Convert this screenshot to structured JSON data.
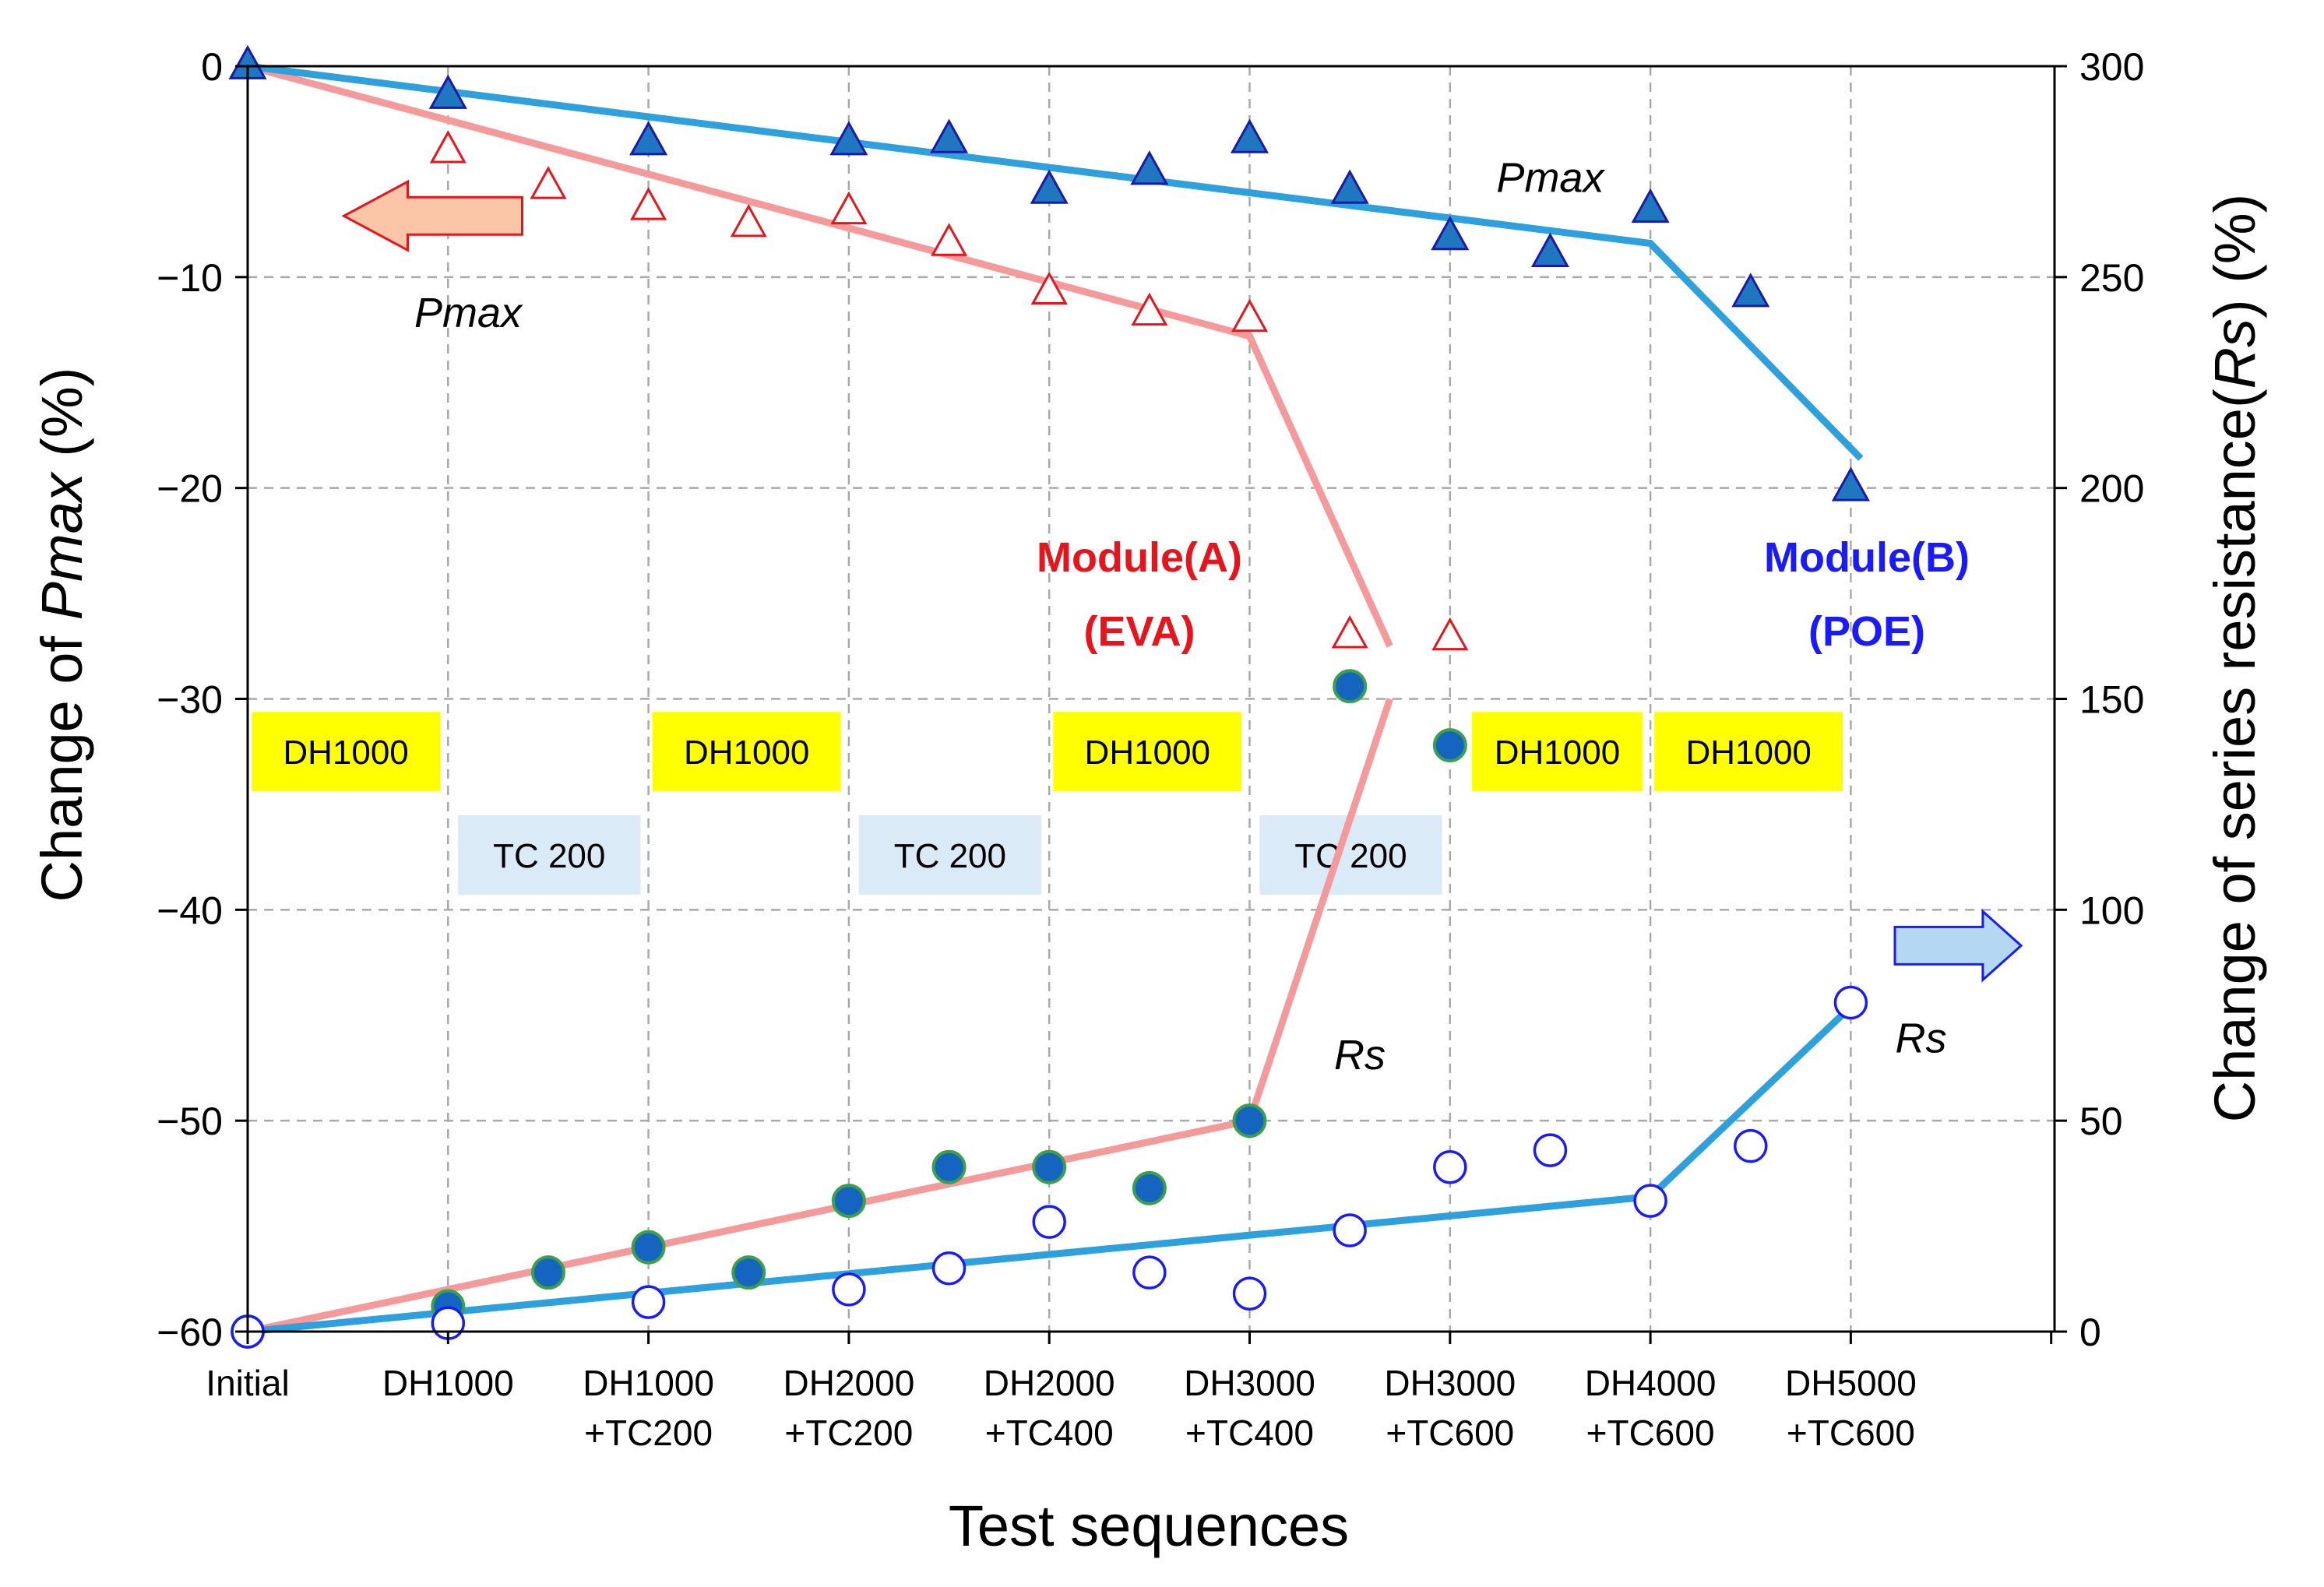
{
  "chart_data": {
    "type": "line",
    "xlabel": "Test sequences",
    "ylabel_left": {
      "prefix": "Change of ",
      "italic": "Pmax",
      "suffix": " (%)"
    },
    "ylabel_right": {
      "prefix": "Change of series resistance(",
      "italic": "Rs",
      "suffix": ") (%)"
    },
    "ylim_left": [
      -60,
      0
    ],
    "ylim_right": [
      0,
      300
    ],
    "xlim": [
      0,
      9
    ],
    "yticks_left": [
      0,
      -10,
      -20,
      -30,
      -40,
      -50,
      -60
    ],
    "ytick_labels_left": [
      "0",
      "−10",
      "−20",
      "−30",
      "−40",
      "−50",
      "−60"
    ],
    "yticks_right": [
      300,
      250,
      200,
      150,
      100,
      50,
      0
    ],
    "ytick_labels_right": [
      "300",
      "250",
      "200",
      "150",
      "100",
      "50",
      "0"
    ],
    "grid": true,
    "categories": [
      {
        "l1": "Initial",
        "l2": ""
      },
      {
        "l1": "DH1000",
        "l2": ""
      },
      {
        "l1": "DH1000",
        "l2": "+TC200"
      },
      {
        "l1": "DH2000",
        "l2": "+TC200"
      },
      {
        "l1": "DH2000",
        "l2": "+TC400"
      },
      {
        "l1": "DH3000",
        "l2": "+TC400"
      },
      {
        "l1": "DH3000",
        "l2": "+TC600"
      },
      {
        "l1": "DH4000",
        "l2": "+TC600"
      },
      {
        "l1": "DH5000",
        "l2": "+TC600"
      }
    ],
    "series": [
      {
        "name": "Module(A) Pmax",
        "axis": "left",
        "marker": "triangle-open",
        "color": "#e8141b",
        "x": [
          0,
          1,
          1.5,
          2,
          2.5,
          3,
          3.5,
          4,
          4.5,
          5,
          5.5,
          6
        ],
        "y": [
          0,
          -4,
          -5.7,
          -6.7,
          -7.5,
          -6.9,
          -8.4,
          -10.7,
          -11.7,
          -12,
          -27,
          -27.1
        ]
      },
      {
        "name": "Module(B) Pmax",
        "axis": "left",
        "marker": "triangle-filled",
        "color": "#1f77c0",
        "x": [
          0,
          1,
          2,
          3,
          3.5,
          4,
          4.5,
          5,
          5.5,
          6,
          6.5,
          7,
          7.5,
          8
        ],
        "y": [
          0,
          -1.4,
          -3.6,
          -3.6,
          -3.5,
          -5.9,
          -5,
          -3.5,
          -5.9,
          -8.1,
          -8.9,
          -6.8,
          -10.8,
          -20
        ]
      },
      {
        "name": "Module(A) Rs",
        "axis": "right",
        "marker": "circle-filled",
        "color": "#1565c0",
        "x": [
          0,
          1,
          1.5,
          2,
          2.5,
          3,
          3.5,
          4,
          4.5,
          5,
          5.5,
          6
        ],
        "y": [
          0,
          6,
          14,
          20,
          14,
          31,
          39,
          39,
          34,
          50,
          153,
          139
        ]
      },
      {
        "name": "Module(B) Rs",
        "axis": "right",
        "marker": "circle-open",
        "color": "#1a1aff",
        "x": [
          0,
          1,
          2,
          3,
          3.5,
          4,
          4.5,
          5,
          5.5,
          6,
          6.5,
          7,
          7.5,
          8
        ],
        "y": [
          0,
          2,
          7,
          10,
          15,
          26,
          14,
          9,
          24,
          39,
          43,
          31,
          44,
          78
        ]
      }
    ],
    "trend_lines": [
      {
        "name": "Module(A) Pmax trend",
        "axis": "left",
        "color": "#f59a9a",
        "x": [
          0,
          5,
          5.7
        ],
        "y": [
          0,
          -12.8,
          -27.5
        ]
      },
      {
        "name": "Module(A) Rs trend",
        "axis": "right",
        "color": "#f59a9a",
        "x": [
          0,
          5,
          5.7
        ],
        "y": [
          0,
          50,
          150
        ]
      },
      {
        "name": "Module(B) Pmax trend",
        "axis": "left",
        "color": "#2ea0dc",
        "x": [
          0,
          7,
          8.05
        ],
        "y": [
          0,
          -8.4,
          -18.6
        ]
      },
      {
        "name": "Module(B) Rs trend",
        "axis": "right",
        "color": "#2ea0dc",
        "x": [
          0,
          7,
          8
        ],
        "y": [
          0,
          32,
          77
        ]
      }
    ],
    "annotations": [
      {
        "text": "Module(A)",
        "color": "#e8141b",
        "bold": true,
        "italic": false,
        "x": 4.45,
        "yl": -23.3
      },
      {
        "text": "(EVA)",
        "color": "#e8141b",
        "bold": true,
        "italic": false,
        "x": 4.45,
        "yl": -26.8
      },
      {
        "text": "Module(B)",
        "color": "#1a1aff",
        "bold": true,
        "italic": false,
        "x": 8.08,
        "yl": -23.3
      },
      {
        "text": "(POE)",
        "color": "#1a1aff",
        "bold": true,
        "italic": false,
        "x": 8.08,
        "yl": -26.8
      },
      {
        "text": "Pmax",
        "color": "#000000",
        "bold": false,
        "italic": true,
        "x": 6.5,
        "yl": -5.3
      },
      {
        "text": "Pmax",
        "color": "#000000",
        "bold": false,
        "italic": true,
        "x": 1.1,
        "yl": -11.7
      },
      {
        "text": "Rs",
        "color": "#000000",
        "bold": false,
        "italic": true,
        "x": 5.55,
        "yl": -46.9
      },
      {
        "text": "Rs",
        "color": "#000000",
        "bold": false,
        "italic": true,
        "x": 8.35,
        "yl": -46.1
      }
    ],
    "condition_boxes": [
      {
        "text": "DH1000",
        "fill": "#ffff00",
        "x0": 0.02,
        "x1": 0.96,
        "yl": -32.5
      },
      {
        "text": "DH1000",
        "fill": "#ffff00",
        "x0": 2.02,
        "x1": 2.96,
        "yl": -32.5
      },
      {
        "text": "DH1000",
        "fill": "#ffff00",
        "x0": 4.02,
        "x1": 4.96,
        "yl": -32.5
      },
      {
        "text": "DH1000",
        "fill": "#ffff00",
        "x0": 6.11,
        "x1": 6.96,
        "yl": -32.5
      },
      {
        "text": "DH1000",
        "fill": "#ffff00",
        "x0": 7.02,
        "x1": 7.96,
        "yl": -32.5
      },
      {
        "text": "TC 200",
        "fill": "#daeaf7",
        "x0": 1.05,
        "x1": 1.96,
        "yl": -37.4
      },
      {
        "text": "TC 200",
        "fill": "#daeaf7",
        "x0": 3.05,
        "x1": 3.96,
        "yl": -37.4
      },
      {
        "text": "TC 200",
        "fill": "#daeaf7",
        "x0": 5.05,
        "x1": 5.96,
        "yl": -37.4
      }
    ],
    "arrows": [
      {
        "name": "left-arrow",
        "direction": "left",
        "fill": "#fbc6a7",
        "stroke": "#e8141b",
        "x0": 0.48,
        "x1": 1.37,
        "yl": -7.1
      },
      {
        "name": "right-arrow",
        "direction": "right",
        "fill": "#b4d7f2",
        "stroke": "#1a1aff",
        "x0": 8.22,
        "x1": 8.85,
        "yl": -41.7
      }
    ]
  }
}
